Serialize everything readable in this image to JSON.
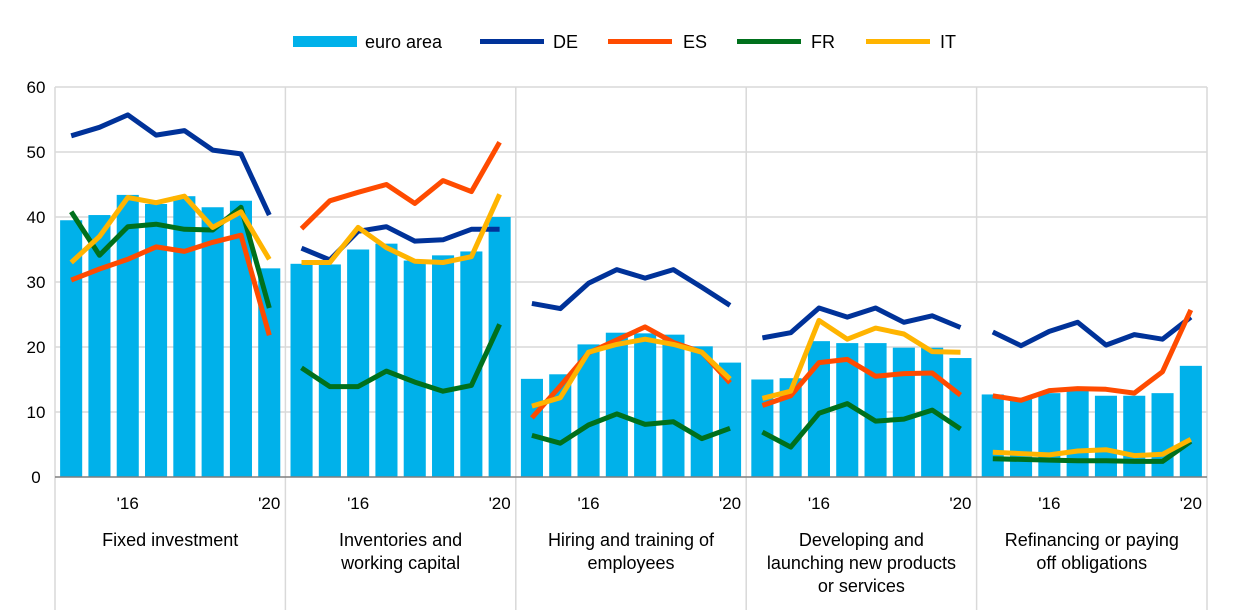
{
  "legend": [
    {
      "key": "euro_area",
      "label": "euro area",
      "kind": "bar"
    },
    {
      "key": "DE",
      "label": "DE",
      "kind": "line"
    },
    {
      "key": "ES",
      "label": "ES",
      "kind": "line"
    },
    {
      "key": "FR",
      "label": "FR",
      "kind": "line"
    },
    {
      "key": "IT",
      "label": "IT",
      "kind": "line"
    }
  ],
  "colors": {
    "euro_area": "#00b1ea",
    "DE": "#003299",
    "ES": "#ff4b00",
    "FR": "#00701c",
    "IT": "#ffb400",
    "grid": "#d9d9d9",
    "axis": "#7f7f7f"
  },
  "chart_data": {
    "type": "bar",
    "ylim": [
      0,
      60
    ],
    "y_ticks": [
      0,
      10,
      20,
      30,
      40,
      50,
      60
    ],
    "grid": true,
    "legend_position": "top",
    "x_tick_labels": [
      "'16",
      "'20"
    ],
    "panels": [
      {
        "label": "Fixed investment",
        "euro_area": [
          39.5,
          40.3,
          43.4,
          42.0,
          43.2,
          41.5,
          42.5,
          32.1
        ],
        "DE": [
          52.5,
          53.8,
          55.7,
          52.6,
          53.3,
          50.3,
          49.7,
          40.3
        ],
        "ES": [
          30.3,
          32.0,
          33.5,
          35.4,
          34.7,
          36.1,
          37.2,
          21.8
        ],
        "FR": [
          40.8,
          34.1,
          38.5,
          38.9,
          38.1,
          38.0,
          41.5,
          26.0
        ],
        "IT": [
          33.0,
          37.0,
          43.0,
          42.2,
          43.2,
          38.4,
          40.8,
          33.5
        ]
      },
      {
        "label": "Inventories and working capital",
        "euro_area": [
          32.8,
          32.7,
          35.0,
          35.9,
          33.3,
          34.1,
          34.7,
          40.0
        ],
        "DE": [
          35.2,
          33.4,
          37.8,
          38.5,
          36.3,
          36.5,
          38.1,
          38.1
        ],
        "ES": [
          38.2,
          42.5,
          43.8,
          45.0,
          42.1,
          45.6,
          43.9,
          51.5
        ],
        "FR": [
          16.8,
          13.9,
          13.9,
          16.3,
          14.6,
          13.2,
          14.1,
          23.5
        ],
        "IT": [
          33.0,
          33.0,
          38.4,
          35.3,
          33.2,
          33.0,
          33.9,
          43.5
        ]
      },
      {
        "label": "Hiring and training of employees",
        "euro_area": [
          15.1,
          15.8,
          20.4,
          22.2,
          22.1,
          21.9,
          20.1,
          17.6
        ],
        "DE": [
          26.7,
          25.9,
          29.8,
          31.9,
          30.6,
          31.9,
          29.2,
          26.4
        ],
        "ES": [
          9.1,
          14.0,
          19.1,
          21.1,
          23.1,
          20.7,
          19.2,
          14.5
        ],
        "FR": [
          6.4,
          5.2,
          8.0,
          9.7,
          8.1,
          8.5,
          5.9,
          7.5
        ],
        "IT": [
          10.9,
          12.2,
          19.2,
          20.4,
          21.2,
          20.4,
          19.2,
          15.1
        ]
      },
      {
        "label": "Developing and launching new products or services",
        "euro_area": [
          15.0,
          15.2,
          20.9,
          20.6,
          20.6,
          19.9,
          19.9,
          18.3
        ],
        "DE": [
          21.4,
          22.2,
          26.0,
          24.6,
          26.0,
          23.8,
          24.8,
          23.0
        ],
        "ES": [
          11.0,
          12.5,
          17.6,
          18.1,
          15.5,
          15.9,
          16.0,
          12.6
        ],
        "FR": [
          6.9,
          4.6,
          9.8,
          11.3,
          8.6,
          8.9,
          10.3,
          7.4
        ],
        "IT": [
          12.1,
          13.2,
          24.1,
          21.2,
          22.9,
          22.0,
          19.3,
          19.2
        ]
      },
      {
        "label": "Refinancing or paying off obligations",
        "euro_area": [
          12.7,
          12.2,
          12.9,
          13.4,
          12.5,
          12.5,
          12.9,
          17.1
        ],
        "DE": [
          22.3,
          20.2,
          22.4,
          23.8,
          20.3,
          21.9,
          21.2,
          24.6
        ],
        "ES": [
          12.5,
          11.8,
          13.3,
          13.6,
          13.5,
          12.9,
          16.2,
          25.7
        ],
        "FR": [
          2.8,
          2.7,
          2.6,
          2.5,
          2.5,
          2.4,
          2.4,
          5.5
        ],
        "IT": [
          3.8,
          3.6,
          3.4,
          4.0,
          4.2,
          3.3,
          3.5,
          5.8
        ]
      }
    ]
  }
}
